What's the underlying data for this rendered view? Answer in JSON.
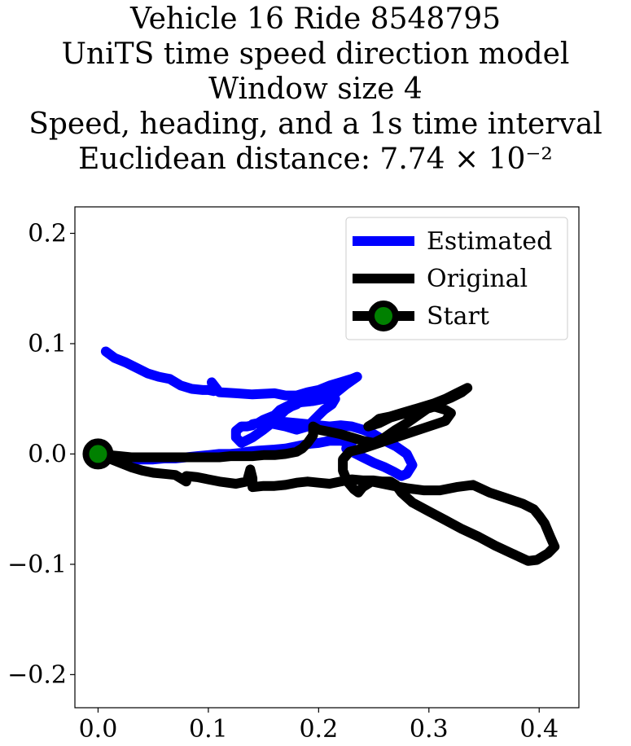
{
  "title_lines": [
    "Vehicle 16 Ride 8548795",
    "UniTS time speed direction model",
    "Window size 4",
    "Speed, heading, and a 1s time interval",
    "Euclidean distance: 7.74 × 10⁻²"
  ],
  "colors": {
    "estimated": "#0000ff",
    "original": "#000000",
    "start_marker": "#008000"
  },
  "chart_data": {
    "type": "line",
    "xlim": [
      -0.021,
      0.436
    ],
    "ylim": [
      -0.23,
      0.224
    ],
    "xticks": [
      0.0,
      0.1,
      0.2,
      0.3,
      0.4
    ],
    "xtick_labels": [
      "0.0",
      "0.1",
      "0.2",
      "0.3",
      "0.4"
    ],
    "yticks": [
      -0.2,
      -0.1,
      0.0,
      0.1,
      0.2
    ],
    "ytick_labels": [
      "−0.2",
      "−0.1",
      "0.0",
      "0.1",
      "0.2"
    ],
    "legend_position": "top-right",
    "series": [
      {
        "name": "Estimated",
        "x": [
          0.007,
          0.015,
          0.025,
          0.035,
          0.045,
          0.055,
          0.06,
          0.065,
          0.075,
          0.085,
          0.095,
          0.1,
          0.105,
          0.103,
          0.11,
          0.125,
          0.14,
          0.16,
          0.17,
          0.18,
          0.19,
          0.2,
          0.205,
          0.21,
          0.22,
          0.23,
          0.235,
          0.225,
          0.215,
          0.205,
          0.195,
          0.185,
          0.175,
          0.165,
          0.16,
          0.155,
          0.15,
          0.145,
          0.14,
          0.14,
          0.14,
          0.135,
          0.13,
          0.13,
          0.13,
          0.125,
          0.125,
          0.13,
          0.14,
          0.15,
          0.16,
          0.165,
          0.17,
          0.175,
          0.18,
          0.185,
          0.19,
          0.195,
          0.2,
          0.205,
          0.21,
          0.215,
          0.212,
          0.205,
          0.2,
          0.195,
          0.19,
          0.18,
          0.17,
          0.16,
          0.155,
          0.16,
          0.17,
          0.18,
          0.19,
          0.2,
          0.21,
          0.22,
          0.23,
          0.24,
          0.25,
          0.26,
          0.27,
          0.28,
          0.285,
          0.28,
          0.275,
          0.268,
          0.26,
          0.25,
          0.24,
          0.23,
          0.225,
          0.23,
          0.22,
          0.21,
          0.2,
          0.19,
          0.18,
          0.17,
          0.16,
          0.145,
          0.135,
          0.13,
          0.12,
          0.11,
          0.1,
          0.09,
          0.08,
          0.07,
          0.06,
          0.05,
          0.04,
          0.03,
          0.02,
          0.01,
          0.0
        ],
        "y": [
          0.093,
          0.087,
          0.083,
          0.078,
          0.073,
          0.07,
          0.069,
          0.068,
          0.062,
          0.059,
          0.058,
          0.058,
          0.057,
          0.065,
          0.056,
          0.055,
          0.054,
          0.055,
          0.053,
          0.053,
          0.056,
          0.058,
          0.06,
          0.062,
          0.065,
          0.068,
          0.07,
          0.063,
          0.055,
          0.05,
          0.048,
          0.047,
          0.045,
          0.04,
          0.035,
          0.033,
          0.031,
          0.028,
          0.027,
          0.026,
          0.026,
          0.025,
          0.025,
          0.025,
          0.025,
          0.021,
          0.015,
          0.01,
          0.015,
          0.022,
          0.03,
          0.035,
          0.04,
          0.043,
          0.045,
          0.048,
          0.05,
          0.052,
          0.053,
          0.054,
          0.052,
          0.05,
          0.045,
          0.04,
          0.035,
          0.03,
          0.025,
          0.022,
          0.025,
          0.027,
          0.029,
          0.03,
          0.029,
          0.028,
          0.027,
          0.026,
          0.025,
          0.026,
          0.025,
          0.022,
          0.018,
          0.012,
          0.007,
          0.0,
          -0.01,
          -0.018,
          -0.02,
          -0.016,
          -0.012,
          -0.008,
          -0.003,
          0.002,
          0.005,
          0.01,
          0.012,
          0.012,
          0.01,
          0.009,
          0.007,
          0.005,
          0.004,
          0.003,
          0.002,
          0.001,
          0.0,
          0.0,
          -0.001,
          -0.002,
          -0.003,
          -0.004,
          -0.004,
          -0.005,
          -0.005,
          -0.005,
          -0.005,
          -0.004,
          0.0
        ]
      },
      {
        "name": "Original",
        "x": [
          0.0,
          0.01,
          0.02,
          0.03,
          0.04,
          0.05,
          0.06,
          0.07,
          0.08,
          0.09,
          0.1,
          0.11,
          0.12,
          0.13,
          0.14,
          0.15,
          0.16,
          0.17,
          0.18,
          0.185,
          0.19,
          0.195,
          0.195,
          0.2,
          0.21,
          0.22,
          0.23,
          0.24,
          0.25,
          0.26,
          0.27,
          0.28,
          0.29,
          0.3,
          0.31,
          0.32,
          0.33,
          0.335,
          0.325,
          0.315,
          0.305,
          0.295,
          0.285,
          0.275,
          0.265,
          0.255,
          0.25,
          0.245,
          0.255,
          0.265,
          0.275,
          0.285,
          0.295,
          0.305,
          0.315,
          0.32,
          0.315,
          0.3,
          0.285,
          0.27,
          0.255,
          0.24,
          0.228,
          0.222,
          0.222,
          0.226,
          0.232,
          0.236,
          0.24,
          0.248,
          0.258,
          0.268,
          0.28,
          0.295,
          0.31,
          0.325,
          0.34,
          0.355,
          0.37,
          0.385,
          0.395,
          0.4,
          0.405,
          0.41,
          0.414,
          0.408,
          0.398,
          0.39,
          0.375,
          0.36,
          0.345,
          0.33,
          0.315,
          0.3,
          0.285,
          0.275,
          0.27,
          0.265,
          0.258,
          0.25,
          0.24,
          0.23,
          0.22,
          0.21,
          0.2,
          0.19,
          0.18,
          0.17,
          0.16,
          0.15,
          0.14,
          0.14,
          0.138,
          0.135,
          0.125,
          0.11,
          0.1,
          0.09,
          0.08,
          0.08,
          0.07,
          0.06,
          0.05,
          0.04,
          0.03,
          0.02,
          0.01,
          0.0
        ],
        "y": [
          0.0,
          -0.001,
          -0.002,
          -0.003,
          -0.003,
          -0.003,
          -0.003,
          -0.003,
          -0.003,
          -0.003,
          -0.003,
          -0.003,
          -0.002,
          -0.002,
          -0.002,
          -0.001,
          -0.001,
          0.0,
          0.002,
          0.005,
          0.01,
          0.017,
          0.025,
          0.022,
          0.02,
          0.018,
          0.015,
          0.012,
          0.01,
          0.015,
          0.022,
          0.028,
          0.035,
          0.042,
          0.047,
          0.051,
          0.056,
          0.06,
          0.055,
          0.05,
          0.046,
          0.043,
          0.04,
          0.037,
          0.034,
          0.032,
          0.028,
          0.025,
          0.028,
          0.033,
          0.036,
          0.038,
          0.04,
          0.043,
          0.04,
          0.037,
          0.03,
          0.025,
          0.02,
          0.015,
          0.01,
          0.005,
          0.002,
          -0.005,
          -0.015,
          -0.025,
          -0.032,
          -0.035,
          -0.03,
          -0.025,
          -0.027,
          -0.029,
          -0.031,
          -0.033,
          -0.033,
          -0.03,
          -0.028,
          -0.035,
          -0.04,
          -0.045,
          -0.05,
          -0.056,
          -0.063,
          -0.075,
          -0.084,
          -0.09,
          -0.096,
          -0.097,
          -0.09,
          -0.083,
          -0.075,
          -0.068,
          -0.06,
          -0.052,
          -0.044,
          -0.035,
          -0.028,
          -0.025,
          -0.025,
          -0.024,
          -0.024,
          -0.023,
          -0.025,
          -0.027,
          -0.026,
          -0.025,
          -0.026,
          -0.028,
          -0.029,
          -0.029,
          -0.03,
          -0.022,
          -0.014,
          -0.025,
          -0.027,
          -0.025,
          -0.023,
          -0.021,
          -0.02,
          -0.025,
          -0.019,
          -0.018,
          -0.017,
          -0.015,
          -0.012,
          -0.008,
          -0.004,
          0.0
        ]
      },
      {
        "name": "Start",
        "x": [
          0.0
        ],
        "y": [
          0.0
        ]
      }
    ]
  }
}
